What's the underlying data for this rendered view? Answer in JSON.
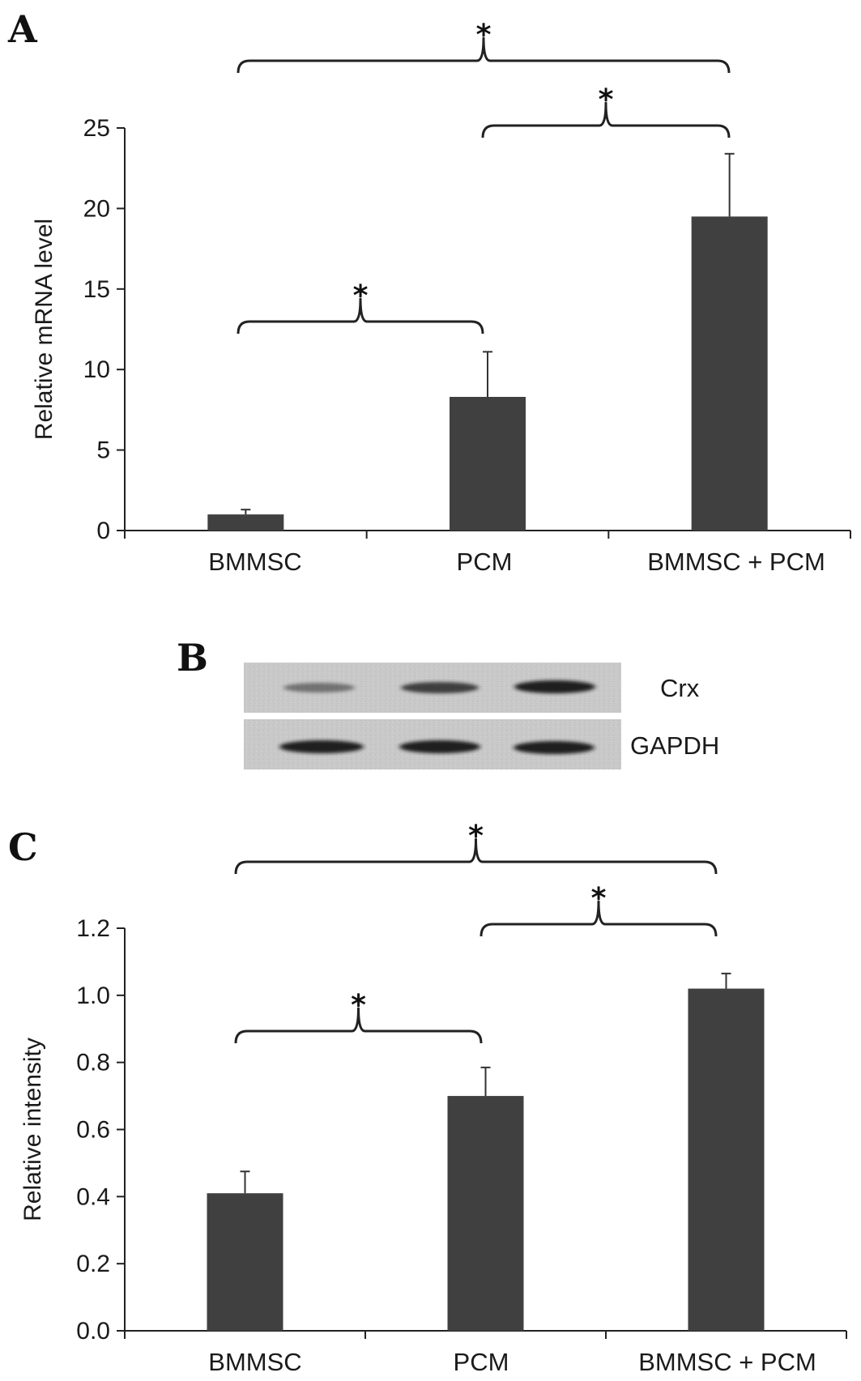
{
  "panels": {
    "a": {
      "letter": "A"
    },
    "b": {
      "letter": "B",
      "rows": [
        "Crx",
        "GAPDH"
      ]
    },
    "c": {
      "letter": "C"
    }
  },
  "significance_marker": "*",
  "chart_data": [
    {
      "type": "bar",
      "panel": "A",
      "categories": [
        "BMMSC",
        "PCM",
        "BMMSC + PCM"
      ],
      "values": [
        1.0,
        8.3,
        19.5
      ],
      "errors": [
        0.3,
        2.8,
        3.9
      ],
      "ylabel": "Relative mRNA level",
      "xlabel": "",
      "ylim": [
        0,
        25
      ],
      "yticks": [
        0,
        5,
        10,
        15,
        20,
        25
      ],
      "ytick_labels": [
        "0",
        "5",
        "10",
        "15",
        "20",
        "25"
      ],
      "bar_color": "#404040",
      "significance": [
        {
          "from": 0,
          "to": 1,
          "label": "*"
        },
        {
          "from": 1,
          "to": 2,
          "label": "*"
        },
        {
          "from": 0,
          "to": 2,
          "label": "*"
        }
      ]
    },
    {
      "type": "bar",
      "panel": "C",
      "categories": [
        "BMMSC",
        "PCM",
        "BMMSC + PCM"
      ],
      "values": [
        0.41,
        0.7,
        1.02
      ],
      "errors": [
        0.065,
        0.085,
        0.045
      ],
      "ylabel": "Relative intensity",
      "xlabel": "",
      "ylim": [
        0,
        1.2
      ],
      "yticks": [
        0,
        0.2,
        0.4,
        0.6,
        0.8,
        1.0,
        1.2
      ],
      "ytick_labels": [
        "0.0",
        "0.2",
        "0.4",
        "0.6",
        "0.8",
        "1.0",
        "1.2"
      ],
      "bar_color": "#404040",
      "significance": [
        {
          "from": 0,
          "to": 1,
          "label": "*"
        },
        {
          "from": 1,
          "to": 2,
          "label": "*"
        },
        {
          "from": 0,
          "to": 2,
          "label": "*"
        }
      ]
    }
  ]
}
